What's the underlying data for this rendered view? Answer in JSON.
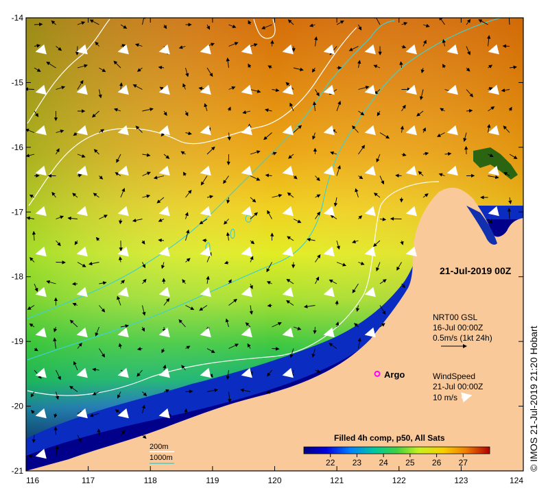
{
  "map": {
    "lon_ticks": [
      "116",
      "117",
      "118",
      "119",
      "120",
      "121",
      "122",
      "123",
      "124"
    ],
    "lat_ticks": [
      "-14",
      "-15",
      "-16",
      "-17",
      "-18",
      "-19",
      "-20",
      "-21"
    ],
    "lon_range": [
      116,
      124
    ],
    "lat_range": [
      -21,
      -14
    ],
    "date_label": "21-Jul-2019 00Z"
  },
  "current_legend": {
    "line1": "NRT00 GSL",
    "line2": "16-Jul 00:00Z",
    "line3": "0.5m/s (1kt 24h)"
  },
  "wind_legend": {
    "line1": "WindSpeed",
    "line2": "21-Jul 00:00Z",
    "line3": "10 m/s"
  },
  "argo": {
    "label": "Argo",
    "lon": 121.65,
    "lat": -19.5
  },
  "contours": {
    "label_200": "200m",
    "label_1000": "1000m",
    "color_200": "#ffffff",
    "color_1000": "#40d0d0"
  },
  "colorbar": {
    "title": "Filled 4h comp, p50, All Sats",
    "ticks": [
      "22",
      "23",
      "24",
      "25",
      "26",
      "27"
    ],
    "range": [
      21,
      28
    ]
  },
  "credit": "© IMOS 21-Jul-2019 21:20 Hobart",
  "colors": {
    "land": "#f9c99a",
    "argo": "#ff00ff",
    "sst_cold": "#00008b",
    "sst_warm": "#cc6a00"
  }
}
